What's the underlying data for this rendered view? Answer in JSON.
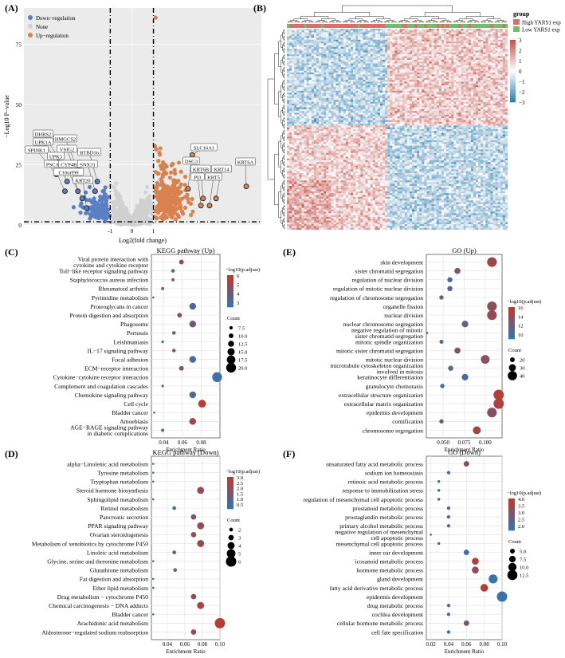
{
  "panel_labels": [
    "(A)",
    "(B)",
    "(C)",
    "(D)",
    "(E)",
    "(F)"
  ],
  "colors": {
    "down": "#5b7fc4",
    "none": "#cfcfcf",
    "up": "#d9824f",
    "heat_high": "#c4504b",
    "heat_low": "#2e7db0",
    "group_high": "#e06b6b",
    "group_low": "#6dbf6d",
    "dot_high": "#c0392b",
    "dot_low": "#2f76b5"
  },
  "chart_data": [
    {
      "id": "A",
      "type": "scatter",
      "title": "",
      "xlabel": "Log2(fold change)",
      "ylabel": "−Log10 P−value",
      "xticks": [
        "-1",
        "0",
        "1"
      ],
      "yticks": [
        "0",
        "25",
        "50",
        "75"
      ],
      "xlim": [
        -5,
        6
      ],
      "ylim": [
        0,
        90
      ],
      "thresholds": {
        "x": [
          -1,
          1
        ],
        "y": 1.3
      },
      "legend": [
        "Down−regulation",
        "None",
        "Up−regulation"
      ],
      "legend_position": "top-left",
      "labeled_genes": [
        {
          "label": "DHRS2",
          "x": -3.4,
          "y": 28,
          "group": "down"
        },
        {
          "label": "UPK1A",
          "x": -3.3,
          "y": 25,
          "group": "down"
        },
        {
          "label": "SPINK1",
          "x": -3.5,
          "y": 21,
          "group": "down"
        },
        {
          "label": "HMGCS2",
          "x": -2.5,
          "y": 23,
          "group": "down"
        },
        {
          "label": "VSIG2",
          "x": -2.5,
          "y": 19,
          "group": "down"
        },
        {
          "label": "UPK3",
          "x": -3.0,
          "y": 18,
          "group": "down"
        },
        {
          "label": "PSCA",
          "x": -3.1,
          "y": 14,
          "group": "down"
        },
        {
          "label": "CYP4B1",
          "x": -2.5,
          "y": 14,
          "group": "down"
        },
        {
          "label": "BTBD16",
          "x": -1.6,
          "y": 18,
          "group": "down"
        },
        {
          "label": "SNX31",
          "x": -1.7,
          "y": 14,
          "group": "down"
        },
        {
          "label": "C10orf99",
          "x": -2.3,
          "y": 11,
          "group": "down"
        },
        {
          "label": "KRT20",
          "x": -2.1,
          "y": 7,
          "group": "down"
        },
        {
          "label": "SLC16A1",
          "x": 2.8,
          "y": 29,
          "group": "up"
        },
        {
          "label": "DSG3",
          "x": 2.6,
          "y": 15,
          "group": "up"
        },
        {
          "label": "KRT6A",
          "x": 5.3,
          "y": 16,
          "group": "up"
        },
        {
          "label": "KRT6B",
          "x": 3.3,
          "y": 11,
          "group": "up"
        },
        {
          "label": "KRT14",
          "x": 3.9,
          "y": 11,
          "group": "up"
        },
        {
          "label": "PI3",
          "x": 3.2,
          "y": 8,
          "group": "up"
        },
        {
          "label": "KRT5",
          "x": 3.6,
          "y": 8,
          "group": "up"
        }
      ]
    },
    {
      "id": "B",
      "type": "heatmap",
      "title": "",
      "legend_title": "group",
      "legend_entries": [
        "High YARS1 exp",
        "Low YARS1 exp"
      ],
      "scale_ticks": [
        "3",
        "2",
        "1",
        "0",
        "−1",
        "−2",
        "−3"
      ],
      "color_range": [
        -3,
        3
      ]
    },
    {
      "id": "C",
      "type": "scatter",
      "title": "KEGG pathway (Up)",
      "xlabel": "Enrichment Ratio",
      "xlim": [
        0.027,
        0.1
      ],
      "xticks": [
        0.04,
        0.06,
        0.08
      ],
      "color_legend_title": "−log10(p.adjust)",
      "color_ticks": [
        "6",
        "5",
        "4",
        "3"
      ],
      "color_range": [
        2,
        6.5
      ],
      "size_legend_title": "Count",
      "size_ticks": [
        "7.5",
        "10.0",
        "12.5",
        "15.0",
        "17.5",
        "20.0"
      ],
      "size_range": [
        5,
        21
      ],
      "terms": [
        {
          "label": "Viral protein interaction with\ncytokine and cytokine receptor",
          "x": 0.059,
          "color": 5.4,
          "count": 10
        },
        {
          "label": "Toll−like receptor signaling pathway",
          "x": 0.05,
          "color": 3.0,
          "count": 8
        },
        {
          "label": "Staphylococcus aureus infection",
          "x": 0.05,
          "color": 4.2,
          "count": 7
        },
        {
          "label": "Rheumatoid arthritis",
          "x": 0.039,
          "color": 2.6,
          "count": 7
        },
        {
          "label": "Pyrimidine metabolism",
          "x": 0.029,
          "color": 2.5,
          "count": 5
        },
        {
          "label": "Proteoglycans in cancer",
          "x": 0.071,
          "color": 2.8,
          "count": 14
        },
        {
          "label": "Protein digestion and absorption",
          "x": 0.057,
          "color": 5.2,
          "count": 10
        },
        {
          "label": "Phagosome",
          "x": 0.071,
          "color": 4.0,
          "count": 14
        },
        {
          "label": "Pertussis",
          "x": 0.051,
          "color": 3.8,
          "count": 8
        },
        {
          "label": "Leishmaniasis",
          "x": 0.039,
          "color": 3.2,
          "count": 6
        },
        {
          "label": "IL−17 signaling pathway",
          "x": 0.051,
          "color": 4.4,
          "count": 8
        },
        {
          "label": "Focal adhesion",
          "x": 0.071,
          "color": 2.7,
          "count": 14
        },
        {
          "label": "ECM−receptor interaction",
          "x": 0.059,
          "color": 4.6,
          "count": 10
        },
        {
          "label": "Cytokine−cytokine receptor interaction",
          "x": 0.097,
          "color": 2.4,
          "count": 20
        },
        {
          "label": "Complement and coagulation cascades",
          "x": 0.039,
          "color": 3.0,
          "count": 6
        },
        {
          "label": "Chemokine signaling pathway",
          "x": 0.071,
          "color": 2.9,
          "count": 14
        },
        {
          "label": "Cell cycle",
          "x": 0.081,
          "color": 6.4,
          "count": 16
        },
        {
          "label": "Bladder cancer",
          "x": 0.03,
          "color": 4.8,
          "count": 4
        },
        {
          "label": "Amoebiasis",
          "x": 0.071,
          "color": 5.6,
          "count": 14
        },
        {
          "label": "AGE−RAGE signaling pathway\nin diabetic complications",
          "x": 0.039,
          "color": 2.5,
          "count": 7
        }
      ]
    },
    {
      "id": "D",
      "type": "scatter",
      "title": "KEGG pathway (Down)",
      "xlabel": "Enrichment Ratio",
      "xlim": [
        0.022,
        0.1
      ],
      "xticks": [
        0.04,
        0.06,
        0.08,
        0.1
      ],
      "xtick_labels": [
        "0.04",
        "0.06",
        "0.08",
        "0.10"
      ],
      "color_legend_title": "−log10(p.adjust)",
      "color_ticks": [
        "3.0",
        "2.5",
        "2.0",
        "1.5",
        "1.0",
        "0.5"
      ],
      "color_range": [
        0.4,
        3.1
      ],
      "size_legend_title": "Count",
      "size_ticks": [
        "2",
        "3",
        "4",
        "5",
        "6"
      ],
      "size_range": [
        1,
        6
      ],
      "terms": [
        {
          "label": "alpha−Linolenic acid metabolism",
          "x": 0.024,
          "color": 0.6,
          "count": 1
        },
        {
          "label": "Tyrosine metabolism",
          "x": 0.024,
          "color": 0.6,
          "count": 1
        },
        {
          "label": "Tryptophan metabolism",
          "x": 0.024,
          "color": 0.6,
          "count": 1
        },
        {
          "label": "Steroid hormone biosynthesis",
          "x": 0.078,
          "color": 2.4,
          "count": 4
        },
        {
          "label": "Sphingolipid metabolism",
          "x": 0.024,
          "color": 0.6,
          "count": 1
        },
        {
          "label": "Retinol metabolism",
          "x": 0.048,
          "color": 0.9,
          "count": 2
        },
        {
          "label": "Pancreatic secretion",
          "x": 0.07,
          "color": 1.8,
          "count": 3
        },
        {
          "label": "PPAR signaling pathway",
          "x": 0.078,
          "color": 2.4,
          "count": 4
        },
        {
          "label": "Ovarian steroidogenesis",
          "x": 0.07,
          "color": 2.2,
          "count": 3
        },
        {
          "label": "Metabolism of xenobiotics by cytochrome P450",
          "x": 0.078,
          "color": 2.5,
          "count": 4
        },
        {
          "label": "Linoleic acid metabolism",
          "x": 0.048,
          "color": 2.4,
          "count": 2
        },
        {
          "label": "Glycine, serine and threonine metabolism",
          "x": 0.024,
          "color": 0.6,
          "count": 1
        },
        {
          "label": "Glutathione metabolism",
          "x": 0.049,
          "color": 1.2,
          "count": 2
        },
        {
          "label": "Fat digestion and absorption",
          "x": 0.024,
          "color": 0.6,
          "count": 1
        },
        {
          "label": "Ether lipid metabolism",
          "x": 0.024,
          "color": 0.6,
          "count": 1
        },
        {
          "label": "Drug metabolism − cytochrome P450",
          "x": 0.07,
          "color": 2.2,
          "count": 3
        },
        {
          "label": "Chemical carcinogenesis − DNA adducts",
          "x": 0.078,
          "color": 2.6,
          "count": 4
        },
        {
          "label": "Bladder cancer",
          "x": 0.024,
          "color": 0.6,
          "count": 1
        },
        {
          "label": "Arachidonic acid metabolism",
          "x": 0.1,
          "color": 2.9,
          "count": 6
        },
        {
          "label": "Aldosterone−regulated sodium reabsorption",
          "x": 0.07,
          "color": 2.4,
          "count": 3
        }
      ]
    },
    {
      "id": "E",
      "type": "scatter",
      "title": "GO (Up)",
      "xlabel": "Enrichment Ratio",
      "xlim": [
        0.03,
        0.12
      ],
      "xticks": [
        0.05,
        0.075,
        0.1
      ],
      "xtick_labels": [
        "0.050",
        "0.075",
        "0.100"
      ],
      "color_legend_title": "−log10(p.adjust)",
      "color_ticks": [
        "16",
        "14",
        "12",
        "10"
      ],
      "color_range": [
        8,
        16.5
      ],
      "size_legend_title": "Count",
      "size_ticks": [
        "20",
        "30",
        "40"
      ],
      "size_range": [
        8,
        45
      ],
      "terms": [
        {
          "label": "skin development",
          "x": 0.108,
          "color": 14.5,
          "count": 42
        },
        {
          "label": "sister chromatid segregation",
          "x": 0.067,
          "color": 12.5,
          "count": 26
        },
        {
          "label": "regulation of nuclear division",
          "x": 0.058,
          "color": 9.5,
          "count": 22
        },
        {
          "label": "regulation of mitotic nuclear division",
          "x": 0.058,
          "color": 10.5,
          "count": 22
        },
        {
          "label": "regulation of chromosome segregation",
          "x": 0.048,
          "color": 11.5,
          "count": 18
        },
        {
          "label": "organelle fission",
          "x": 0.108,
          "color": 13.5,
          "count": 42
        },
        {
          "label": "nuclear division",
          "x": 0.108,
          "color": 14.0,
          "count": 42
        },
        {
          "label": "nuclear chromosome segregation",
          "x": 0.076,
          "color": 11.5,
          "count": 28
        },
        {
          "label": "negative regulation of mitotic\nsister chromatid segregation",
          "x": 0.031,
          "color": 8.5,
          "count": 8
        },
        {
          "label": "mitotic spindle organization",
          "x": 0.048,
          "color": 9.0,
          "count": 17
        },
        {
          "label": "mitotic sister chromatid segregation",
          "x": 0.067,
          "color": 13.0,
          "count": 26
        },
        {
          "label": "mitotic nuclear division",
          "x": 0.1,
          "color": 13.5,
          "count": 38
        },
        {
          "label": "microtubule cytoskeleton organization\ninvolved in mitosis",
          "x": 0.059,
          "color": 10.5,
          "count": 22
        },
        {
          "label": "keratinocyte differentiation",
          "x": 0.076,
          "color": 10.0,
          "count": 28
        },
        {
          "label": "granulocyte chemotaxis",
          "x": 0.049,
          "color": 9.0,
          "count": 18
        },
        {
          "label": "extracellular structure organization",
          "x": 0.116,
          "color": 15.5,
          "count": 45
        },
        {
          "label": "extracellular matrix organization",
          "x": 0.116,
          "color": 15.5,
          "count": 45
        },
        {
          "label": "epidermis development",
          "x": 0.108,
          "color": 13.0,
          "count": 42
        },
        {
          "label": "cornification",
          "x": 0.048,
          "color": 11.5,
          "count": 18
        },
        {
          "label": "chromosome segregation",
          "x": 0.09,
          "color": 15.0,
          "count": 34
        }
      ]
    },
    {
      "id": "F",
      "type": "scatter",
      "title": "GO (Down)",
      "xlabel": "Enrichment Ratio",
      "xlim": [
        0.015,
        0.1
      ],
      "xticks": [
        0.02,
        0.04,
        0.06,
        0.08,
        0.1
      ],
      "xtick_labels": [
        "0.02",
        "0.04",
        "0.06",
        "0.08",
        "0.10"
      ],
      "color_legend_title": "−log10(p.adjust)",
      "color_ticks": [
        "4.0",
        "3.5",
        "3.0",
        "2.5",
        "2.0"
      ],
      "color_range": [
        1.8,
        4.3
      ],
      "size_legend_title": "Count",
      "size_ticks": [
        "5.0",
        "7.5",
        "10.0",
        "12.5"
      ],
      "size_range": [
        1,
        13
      ],
      "terms": [
        {
          "label": "unsaturated fatty acid metabolic process",
          "x": 0.06,
          "color": 3.3,
          "count": 6
        },
        {
          "label": "sodium ion homeostasis",
          "x": 0.04,
          "color": 2.4,
          "count": 3
        },
        {
          "label": "retinoic acid metabolic process",
          "x": 0.029,
          "color": 2.1,
          "count": 2
        },
        {
          "label": "response to immobilization stress",
          "x": 0.029,
          "color": 2.6,
          "count": 2
        },
        {
          "label": "regulation of mesenchymal cell apoptotic process",
          "x": 0.029,
          "color": 2.9,
          "count": 2
        },
        {
          "label": "prostanoid metabolic process",
          "x": 0.04,
          "color": 2.3,
          "count": 3
        },
        {
          "label": "prostaglandin metabolic process",
          "x": 0.04,
          "color": 2.3,
          "count": 3
        },
        {
          "label": "primary alcohol metabolic process",
          "x": 0.04,
          "color": 2.2,
          "count": 3
        },
        {
          "label": "negative regulation of mesenchymal\ncell apoptotic process",
          "x": 0.02,
          "color": 2.9,
          "count": 1
        },
        {
          "label": "mesenchymal cell apoptotic process",
          "x": 0.029,
          "color": 3.1,
          "count": 2
        },
        {
          "label": "inner ear development",
          "x": 0.06,
          "color": 2.0,
          "count": 6
        },
        {
          "label": "icosanoid metabolic process",
          "x": 0.07,
          "color": 3.8,
          "count": 8
        },
        {
          "label": "hormone metabolic process",
          "x": 0.07,
          "color": 3.4,
          "count": 8
        },
        {
          "label": "gland development",
          "x": 0.09,
          "color": 2.0,
          "count": 11
        },
        {
          "label": "fatty acid derivative metabolic process",
          "x": 0.08,
          "color": 4.1,
          "count": 9
        },
        {
          "label": "epidermis development",
          "x": 0.1,
          "color": 2.0,
          "count": 13
        },
        {
          "label": "drug metabolic process",
          "x": 0.04,
          "color": 2.2,
          "count": 3
        },
        {
          "label": "cochlea development",
          "x": 0.04,
          "color": 2.3,
          "count": 3
        },
        {
          "label": "cellular hormone metabolic process",
          "x": 0.06,
          "color": 3.0,
          "count": 6
        },
        {
          "label": "cell fate specification",
          "x": 0.04,
          "color": 2.0,
          "count": 3
        }
      ]
    }
  ]
}
